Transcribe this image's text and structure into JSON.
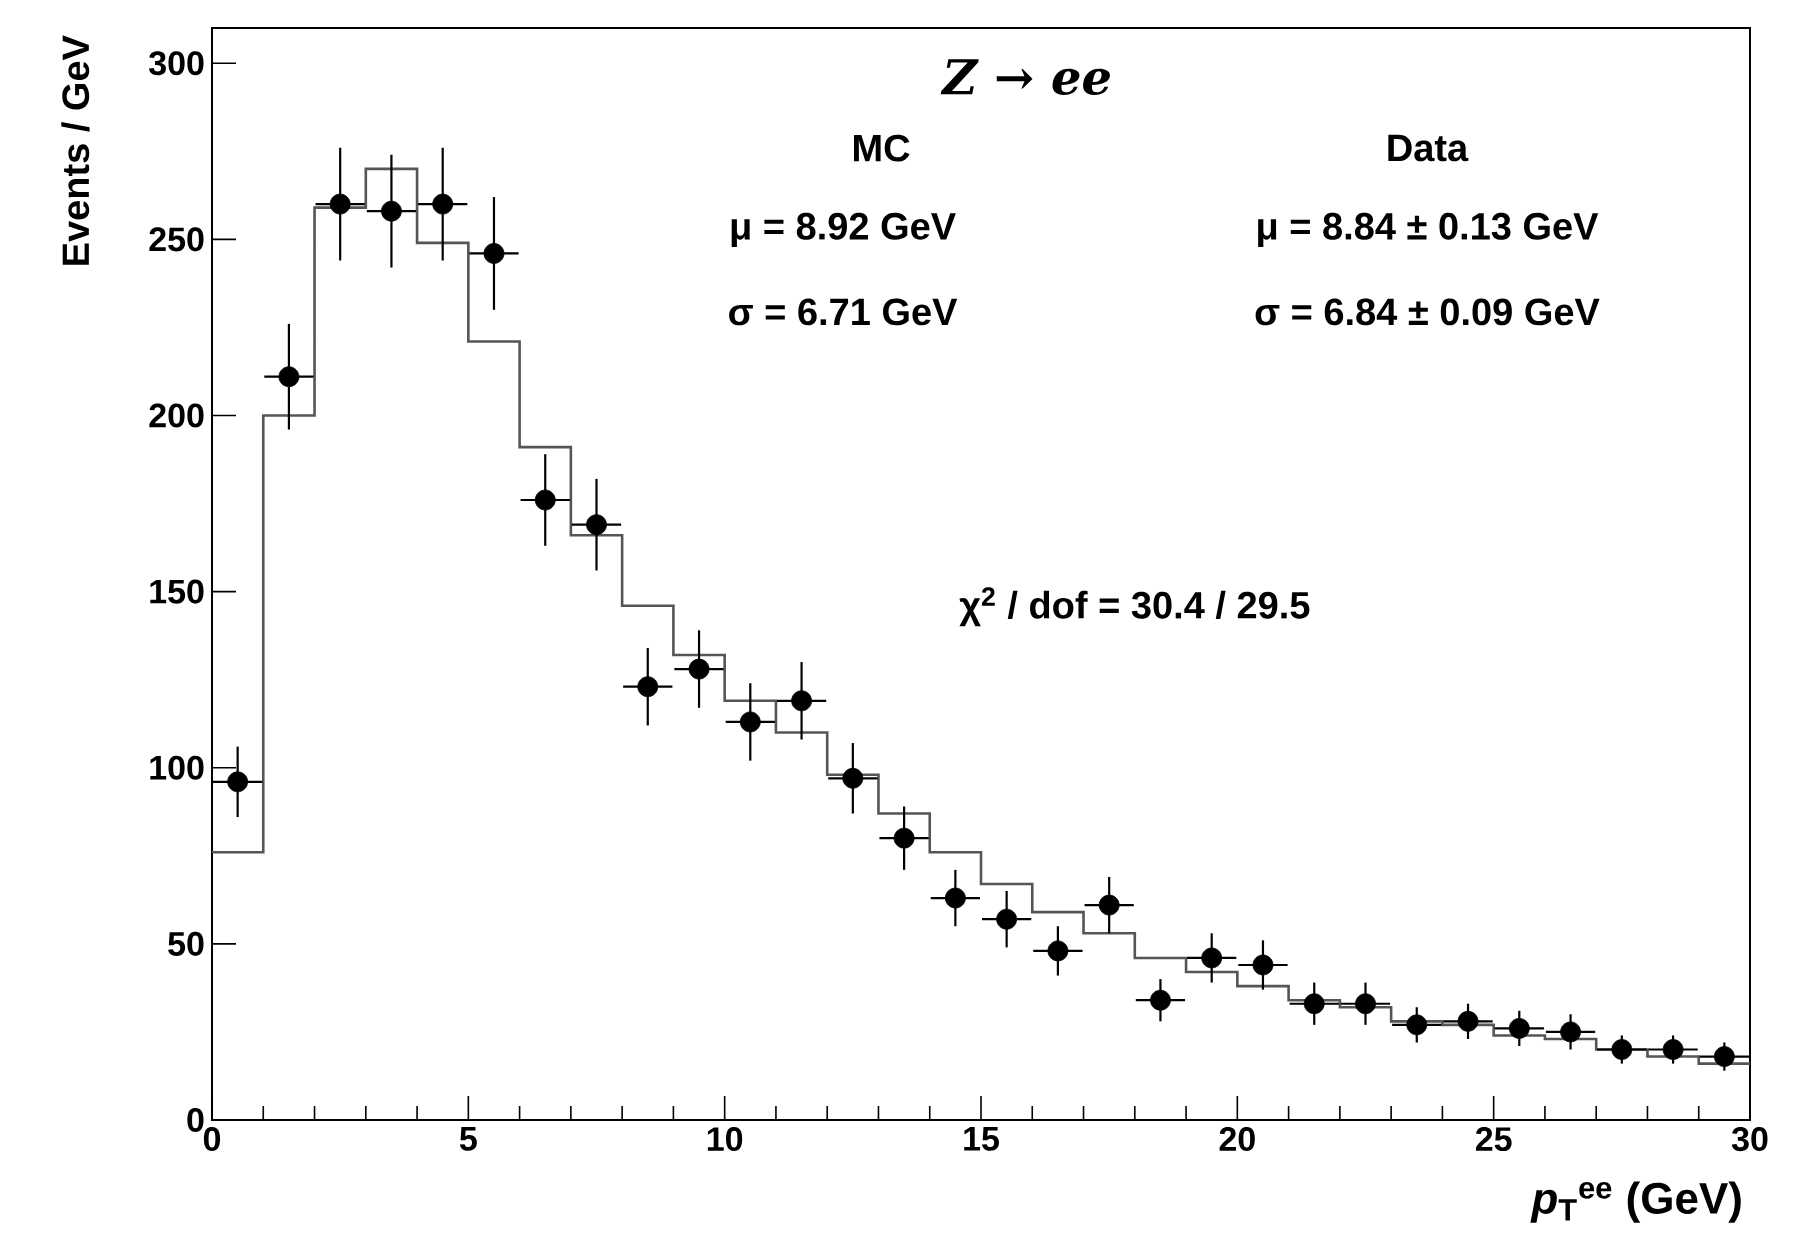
{
  "chart_data": {
    "type": "histogram",
    "title": "Z → ee",
    "xlabel": "*p*$_{T}$$^{ee}$ (GeV)",
    "ylabel": "Events / GeV",
    "xlim": [
      0,
      30
    ],
    "ylim": [
      0,
      310
    ],
    "xticks": [
      0,
      5,
      10,
      15,
      20,
      25,
      30
    ],
    "yticks": [
      0,
      50,
      100,
      150,
      200,
      250,
      300
    ],
    "grid": false,
    "bins": [
      0,
      1,
      2,
      3,
      4,
      5,
      6,
      7,
      8,
      9,
      10,
      11,
      12,
      13,
      14,
      15,
      16,
      17,
      18,
      19,
      20,
      21,
      22,
      23,
      24,
      25,
      26,
      27,
      28,
      29,
      30
    ],
    "series": [
      {
        "type": "histogram",
        "color": "#555555",
        "values": [
          76,
          200,
          259,
          270,
          249,
          221,
          191,
          166,
          146,
          132,
          119,
          110,
          98,
          87,
          76,
          67,
          59,
          53,
          46,
          42,
          38,
          34,
          32,
          28,
          27,
          24,
          23,
          20,
          18,
          16
        ]
      },
      {
        "type": "scatter",
        "color": "#000000",
        "marker": "circle",
        "x": [
          0.5,
          1.5,
          2.5,
          3.5,
          4.5,
          5.5,
          6.5,
          7.5,
          8.5,
          9.5,
          10.5,
          11.5,
          12.5,
          13.5,
          14.5,
          15.5,
          16.5,
          17.5,
          18.5,
          19.5,
          20.5,
          21.5,
          22.5,
          23.5,
          24.5,
          25.5,
          26.5,
          27.5,
          28.5,
          29.5
        ],
        "values": [
          96,
          211,
          260,
          258,
          260,
          246,
          176,
          169,
          123,
          128,
          113,
          119,
          97,
          80,
          63,
          57,
          48,
          61,
          34,
          46,
          44,
          33,
          33,
          27,
          28,
          26,
          25,
          20,
          20,
          18
        ],
        "errors": [
          10,
          15,
          16,
          16,
          16,
          16,
          13,
          13,
          11,
          11,
          11,
          11,
          10,
          9,
          8,
          8,
          7,
          8,
          6,
          7,
          7,
          6,
          6,
          5,
          5,
          5,
          5,
          4,
          4,
          4
        ],
        "xerrors": [
          0.5,
          0.5,
          0.5,
          0.5,
          0.5,
          0.5,
          0.5,
          0.5,
          0.5,
          0.5,
          0.5,
          0.5,
          0.5,
          0.5,
          0.5,
          0.5,
          0.5,
          0.5,
          0.5,
          0.5,
          0.5,
          0.5,
          0.5,
          0.5,
          0.5,
          0.5,
          0.5,
          0.5,
          0.5,
          0.5
        ]
      }
    ],
    "annotations": [
      "MC",
      "Data",
      "μ = 8.92 GeV",
      "μ = 8.84 ± 0.13 GeV",
      "σ = 6.71 GeV",
      "σ = 6.84 ± 0.09 GeV",
      "χ$^{2}$ / dof = 30.4 / 29.5"
    ]
  }
}
